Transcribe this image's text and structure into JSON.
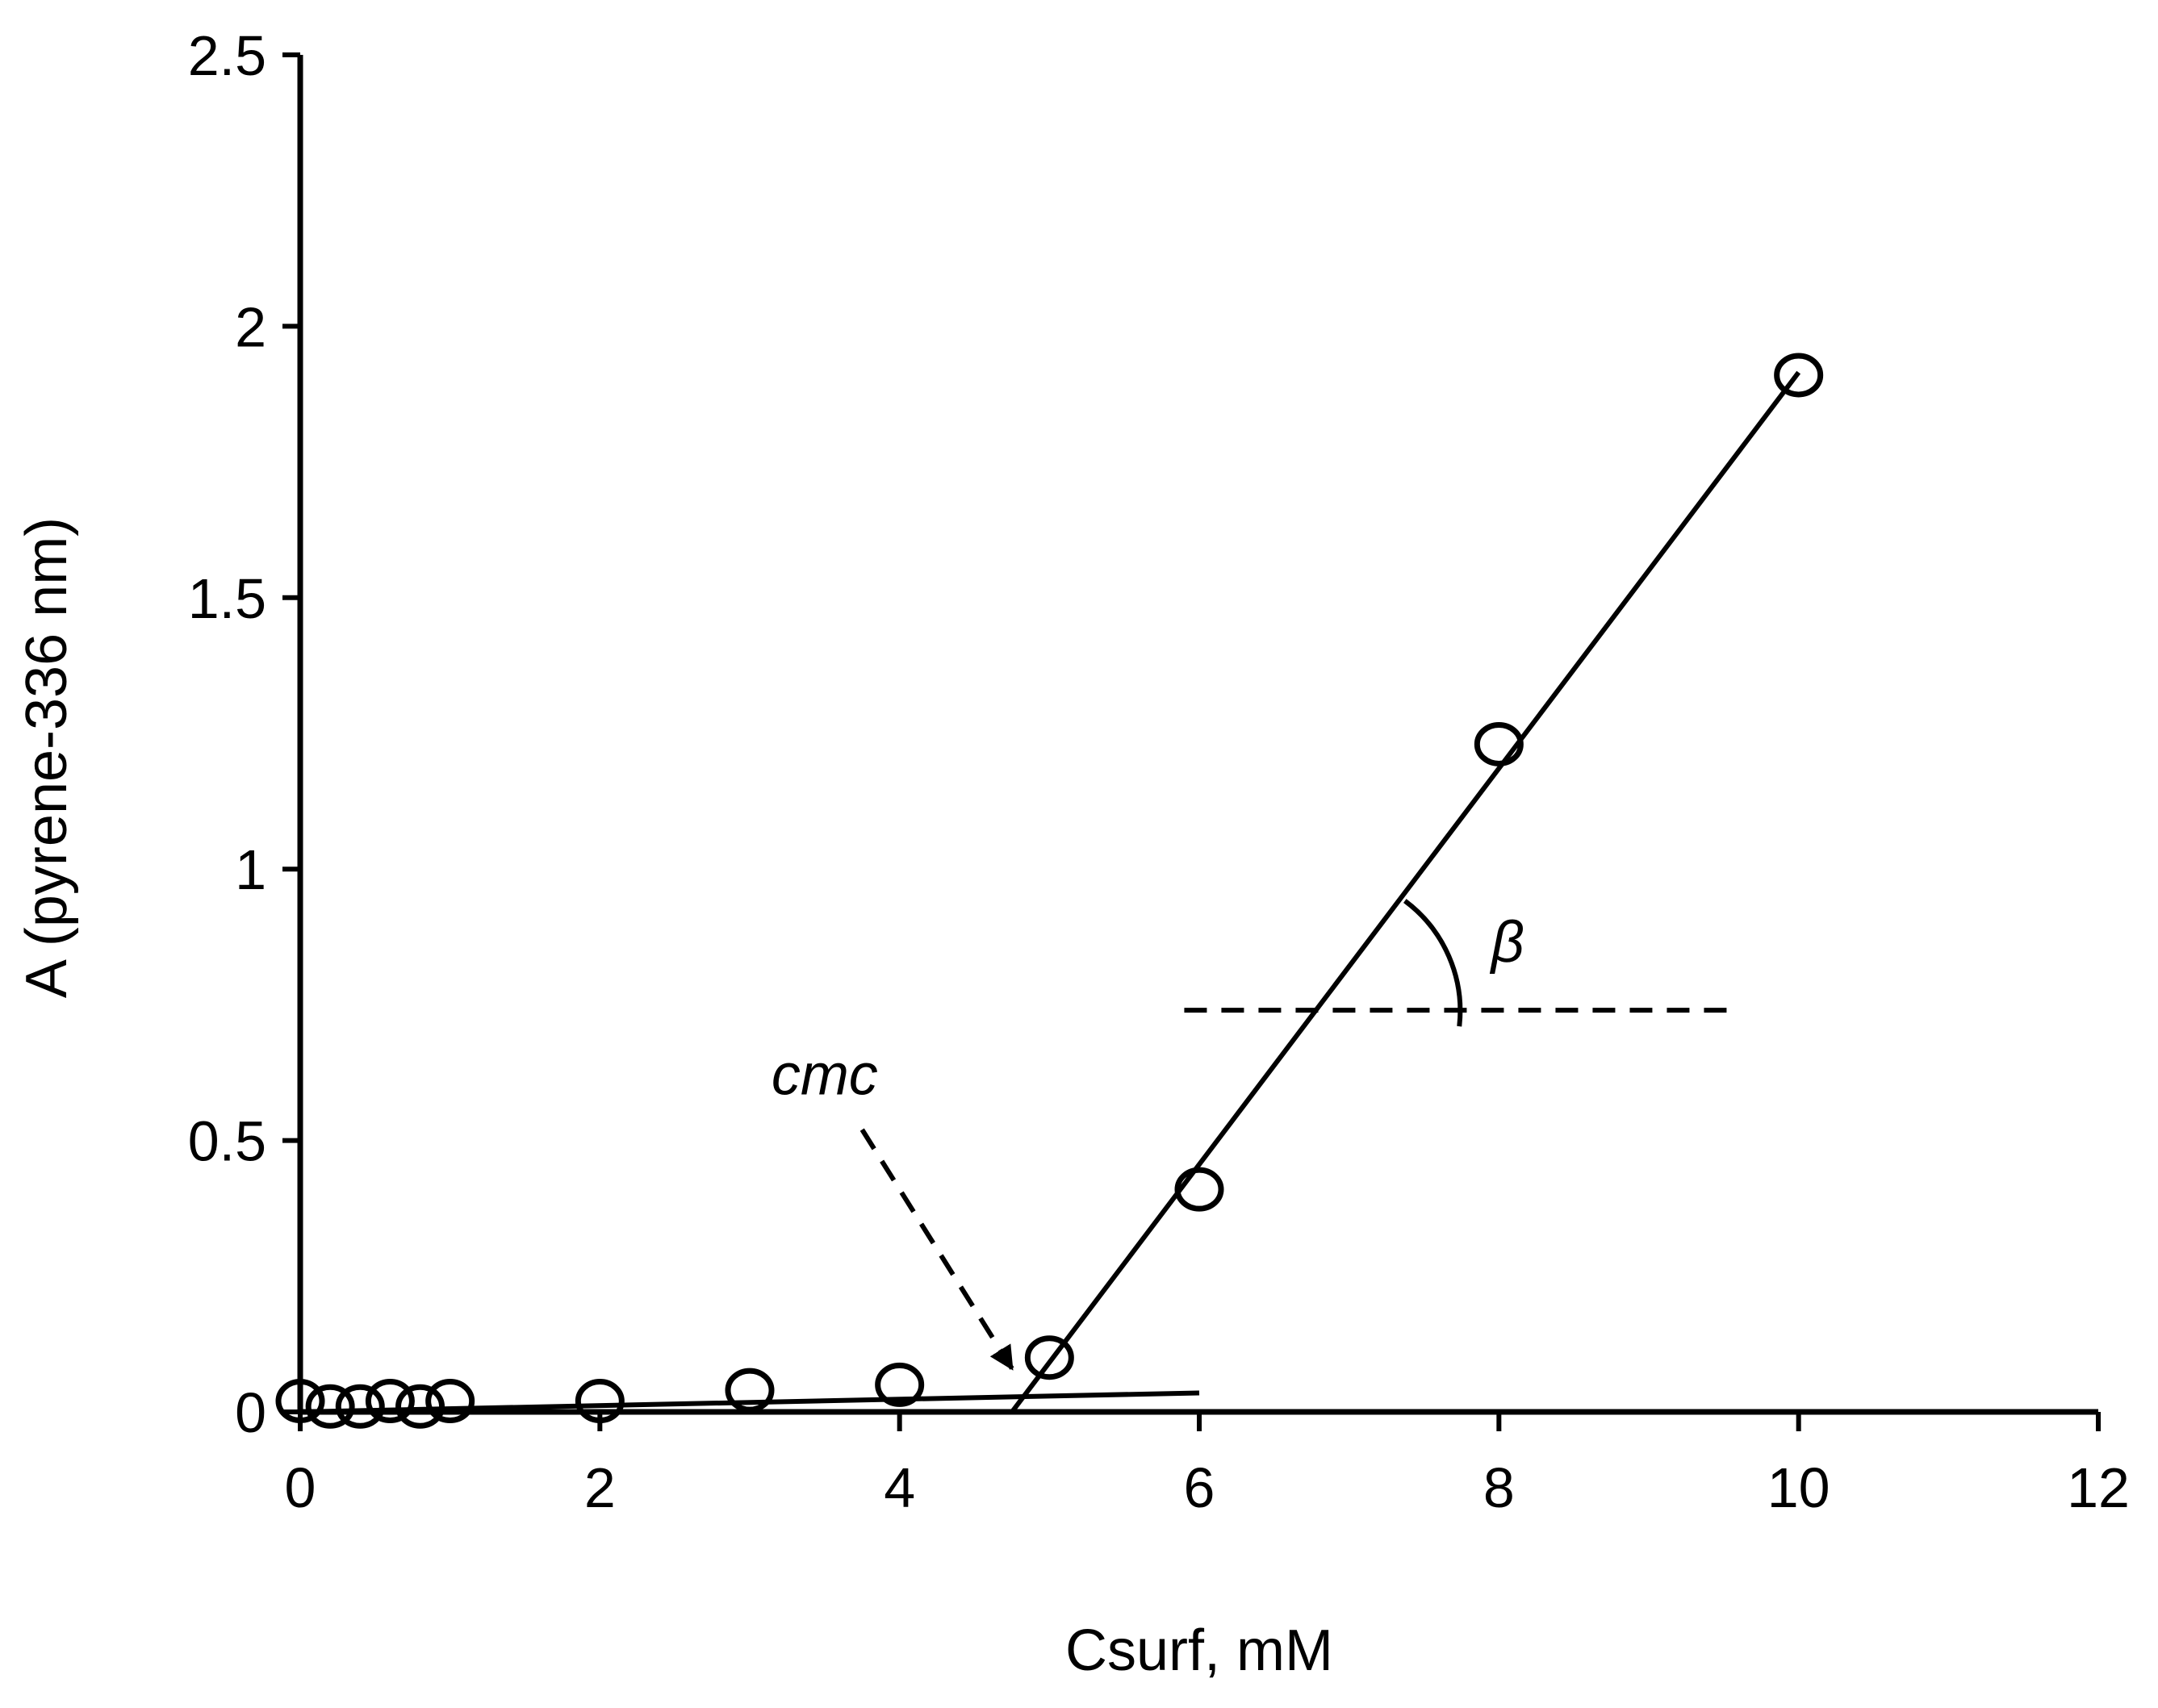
{
  "chart_data": {
    "type": "scatter",
    "title": "",
    "xlabel": "Csurf, mM",
    "ylabel": "A (pyrene-336 nm)",
    "xlim": [
      0,
      12
    ],
    "ylim": [
      0,
      2.5
    ],
    "x_ticks": [
      0,
      2,
      4,
      6,
      8,
      10,
      12
    ],
    "y_ticks": [
      0,
      0.5,
      1,
      1.5,
      2,
      2.5
    ],
    "x_tick_labels": [
      "0",
      "2",
      "4",
      "6",
      "8",
      "10",
      "12"
    ],
    "y_tick_labels": [
      "0",
      "0.5",
      "1",
      "1.5",
      "2",
      "2.5"
    ],
    "grid": false,
    "series": [
      {
        "name": "data",
        "marker": "open-circle",
        "x": [
          0,
          0.2,
          0.4,
          0.6,
          0.8,
          1,
          2,
          3,
          4,
          5,
          6,
          8,
          10
        ],
        "y": [
          0.02,
          0.01,
          0.01,
          0.02,
          0.01,
          0.02,
          0.02,
          0.04,
          0.05,
          0.1,
          0.41,
          1.23,
          1.91
        ]
      }
    ],
    "fit_lines": [
      {
        "name": "pre-micellar fit",
        "x": [
          0,
          6
        ],
        "y": [
          0.0,
          0.035
        ]
      },
      {
        "name": "post-micellar fit",
        "x": [
          4.75,
          10
        ],
        "y": [
          0.0,
          1.915
        ]
      }
    ],
    "reference_line": {
      "name": "horizontal reference",
      "x": [
        5.9,
        9.6
      ],
      "y": [
        0.74,
        0.74
      ],
      "style": "dashed"
    },
    "annotations": {
      "cmc_label": "cmc",
      "cmc_arrow": {
        "from": [
          3.75,
          0.52
        ],
        "to": [
          4.75,
          0.08
        ],
        "style": "dashed"
      },
      "angle_label": "β",
      "angle_vertex": [
        6.82,
        0.74
      ]
    }
  }
}
